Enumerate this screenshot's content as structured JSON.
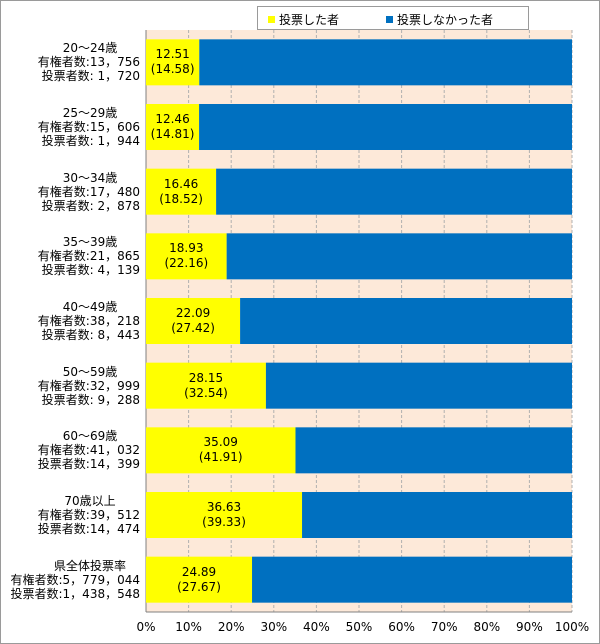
{
  "legend": {
    "voted_label": "投票した者",
    "not_voted_label": "投票しなかった者"
  },
  "colors": {
    "voted": "#ffff00",
    "not_voted": "#0070c0",
    "plot_background": "#fde9d9",
    "gridline": "#b0b0b0"
  },
  "x_axis": {
    "ticks": [
      "0%",
      "10%",
      "20%",
      "30%",
      "40%",
      "50%",
      "60%",
      "70%",
      "80%",
      "90%",
      "100%"
    ]
  },
  "chart_data": {
    "type": "bar",
    "orientation": "horizontal",
    "stacked": "100%",
    "categories": [
      "20～24歳",
      "25～29歳",
      "30～34歳",
      "35～39歳",
      "40～49歳",
      "50～59歳",
      "60～69歳",
      "70歳以上",
      "県全体投票率"
    ],
    "category_details": [
      {
        "name": "20～24歳",
        "eligible": "有権者数:13，756",
        "voters": "投票者数: 1，720"
      },
      {
        "name": "25～29歳",
        "eligible": "有権者数:15，606",
        "voters": "投票者数: 1，944"
      },
      {
        "name": "30～34歳",
        "eligible": "有権者数:17，480",
        "voters": "投票者数: 2，878"
      },
      {
        "name": "35～39歳",
        "eligible": "有権者数:21，865",
        "voters": "投票者数: 4，139"
      },
      {
        "name": "40～49歳",
        "eligible": "有権者数:38，218",
        "voters": "投票者数: 8，443"
      },
      {
        "name": "50～59歳",
        "eligible": "有権者数:32，999",
        "voters": "投票者数: 9，288"
      },
      {
        "name": "60～69歳",
        "eligible": "有権者数:41，032",
        "voters": "投票者数:14，399"
      },
      {
        "name": "70歳以上",
        "eligible": "有権者数:39，512",
        "voters": "投票者数:14，474"
      },
      {
        "name": "県全体投票率",
        "eligible": "有権者数:5，779，044",
        "voters": "投票者数:1，438，548"
      }
    ],
    "series": [
      {
        "name": "投票した者",
        "values": [
          12.51,
          12.46,
          16.46,
          18.93,
          22.09,
          28.15,
          35.09,
          36.63,
          24.89
        ]
      },
      {
        "name": "投票しなかった者",
        "values": [
          87.49,
          87.54,
          83.54,
          81.07,
          77.91,
          71.85,
          64.91,
          63.37,
          75.11
        ]
      }
    ],
    "data_labels": [
      {
        "value": "12.51",
        "previous": "(14.58)"
      },
      {
        "value": "12.46",
        "previous": "(14.81)"
      },
      {
        "value": "16.46",
        "previous": "(18.52)"
      },
      {
        "value": "18.93",
        "previous": "(22.16)"
      },
      {
        "value": "22.09",
        "previous": "(27.42)"
      },
      {
        "value": "28.15",
        "previous": "(32.54)"
      },
      {
        "value": "35.09",
        "previous": "(41.91)"
      },
      {
        "value": "36.63",
        "previous": "(39.33)"
      },
      {
        "value": "24.89",
        "previous": "(27.67)"
      }
    ],
    "xlim": [
      0,
      100
    ],
    "grid": true,
    "legend_position": "top-right"
  }
}
